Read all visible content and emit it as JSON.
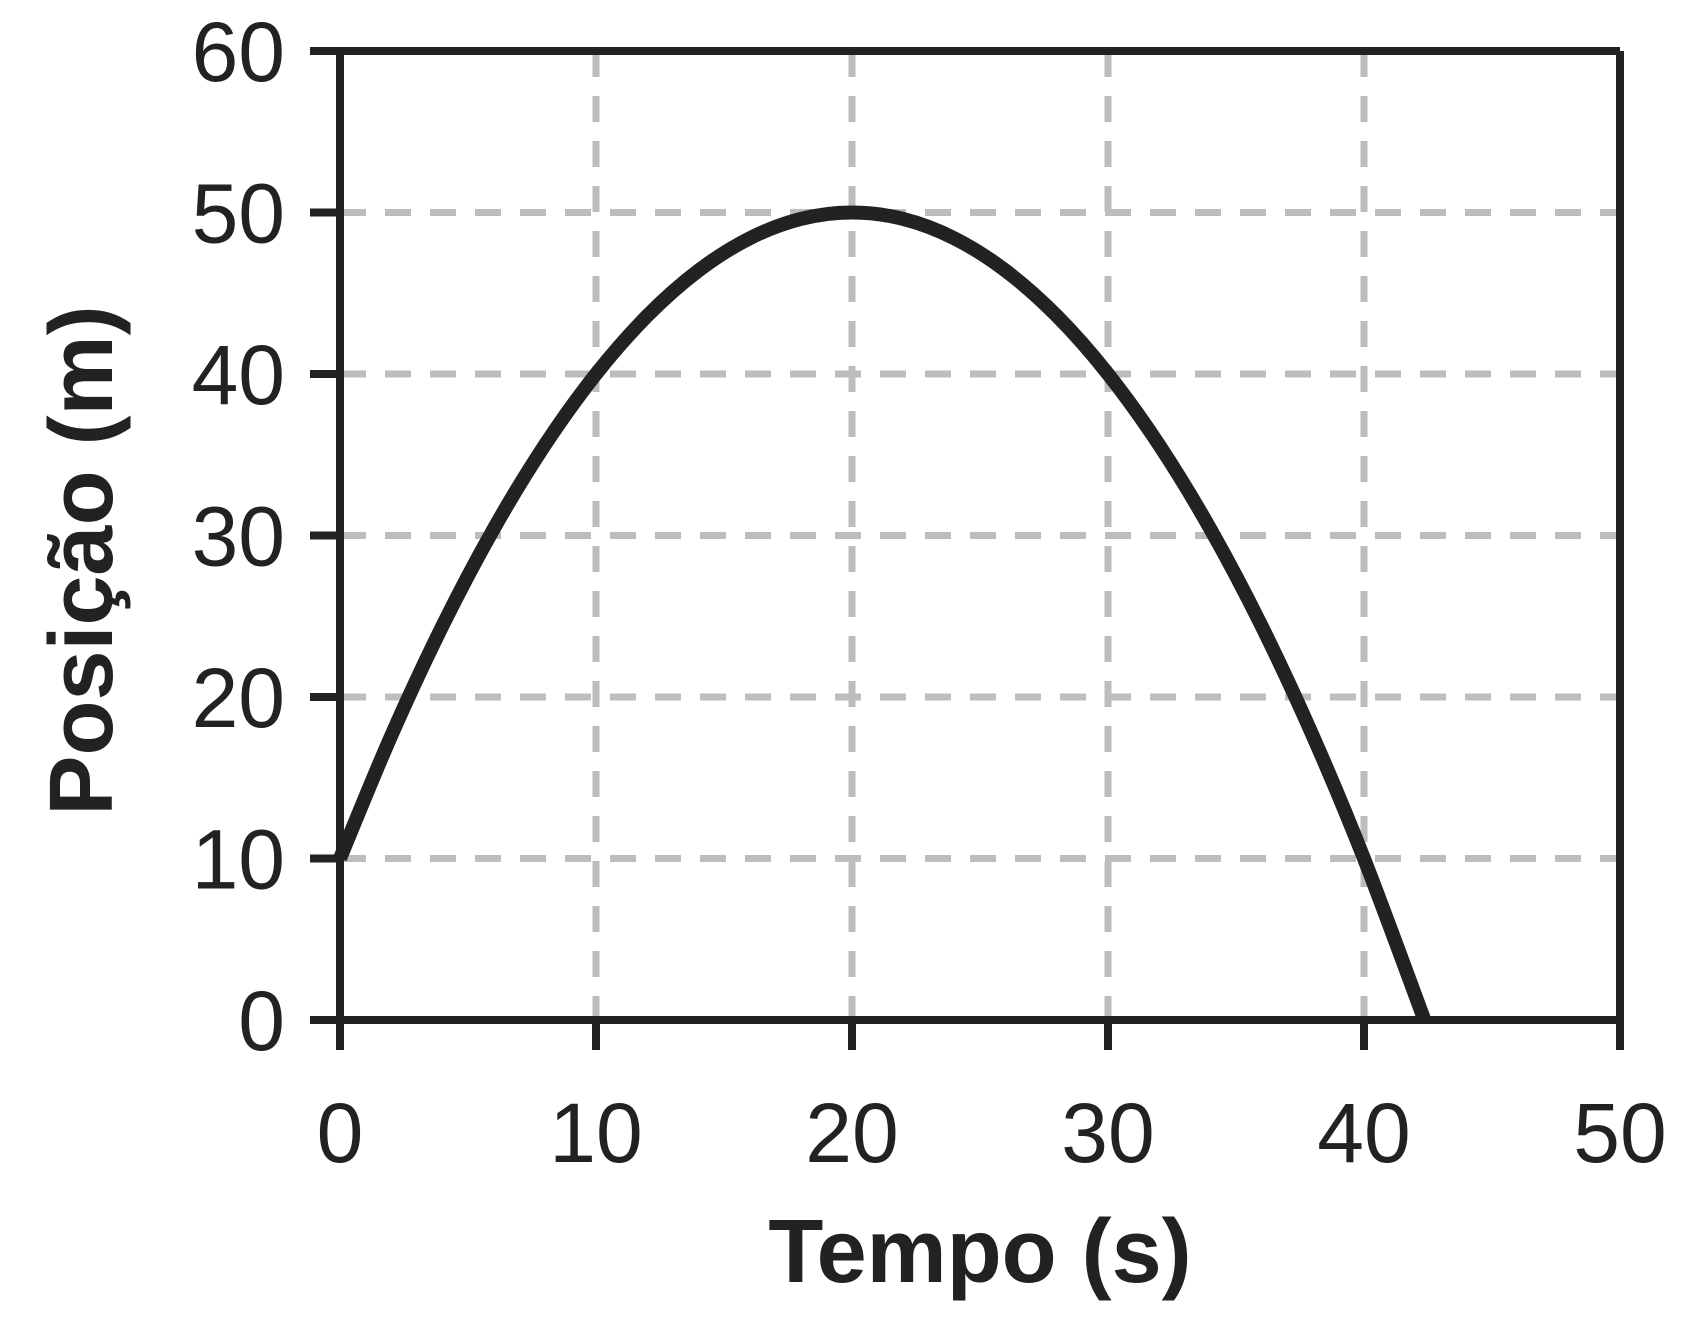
{
  "chart_data": {
    "type": "line",
    "title": "",
    "xlabel": "Tempo (s)",
    "ylabel": "Posição (m)",
    "xlim": [
      0,
      50
    ],
    "ylim": [
      0,
      60
    ],
    "x_ticks": [
      0,
      10,
      20,
      30,
      40,
      50
    ],
    "y_ticks": [
      0,
      10,
      20,
      30,
      40,
      50,
      60
    ],
    "x_tick_labels": [
      "0",
      "10",
      "20",
      "30",
      "40",
      "50"
    ],
    "y_tick_labels": [
      "0",
      "10",
      "20",
      "30",
      "40",
      "50",
      "60"
    ],
    "grid": true,
    "grid_style": "dashed",
    "legend": "none",
    "series": [
      {
        "x": [
          0,
          2,
          4,
          6,
          8,
          10,
          12,
          14,
          16,
          18,
          20,
          22,
          24,
          26,
          28,
          30,
          32,
          34,
          36,
          38,
          40,
          42.36
        ],
        "y": [
          10,
          17.6,
          24.4,
          30.4,
          35.6,
          40,
          43.6,
          46.4,
          48.4,
          49.6,
          50,
          49.6,
          48.4,
          46.4,
          43.6,
          40,
          35.6,
          30.4,
          24.4,
          17.6,
          10,
          0
        ],
        "color": "#222222"
      }
    ],
    "colors": {
      "curve": "#222222",
      "axes": "#222222",
      "grid": "#bdbdbd"
    }
  }
}
